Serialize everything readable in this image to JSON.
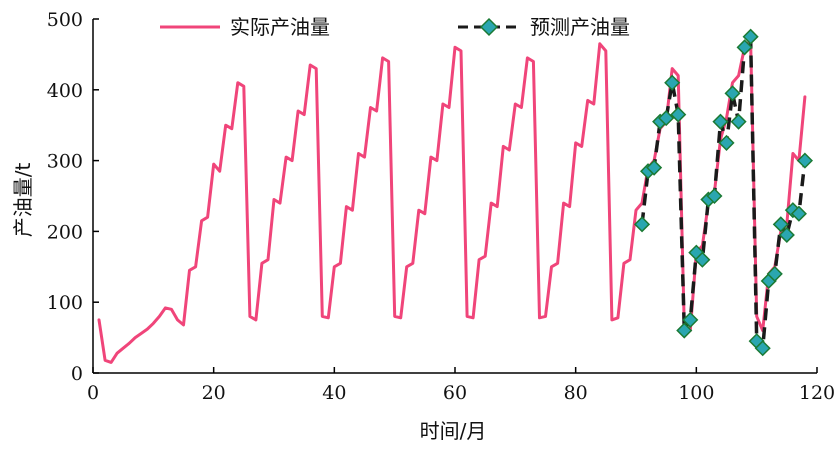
{
  "chart_data": {
    "type": "line",
    "title": "",
    "xlabel": "时间/月",
    "ylabel": "产油量/t",
    "xlim": [
      0,
      120
    ],
    "ylim": [
      0,
      500
    ],
    "xticks": [
      0,
      20,
      40,
      60,
      80,
      100,
      120
    ],
    "yticks": [
      0,
      100,
      200,
      300,
      400,
      500
    ],
    "grid": false,
    "legend_position": "top",
    "series": [
      {
        "name": "实际产油量",
        "color": "#f0457a",
        "style": "solid",
        "x": [
          1,
          2,
          3,
          4,
          5,
          6,
          7,
          8,
          9,
          10,
          11,
          12,
          13,
          14,
          15,
          16,
          17,
          18,
          19,
          20,
          21,
          22,
          23,
          24,
          25,
          26,
          27,
          28,
          29,
          30,
          31,
          32,
          33,
          34,
          35,
          36,
          37,
          38,
          39,
          40,
          41,
          42,
          43,
          44,
          45,
          46,
          47,
          48,
          49,
          50,
          51,
          52,
          53,
          54,
          55,
          56,
          57,
          58,
          59,
          60,
          61,
          62,
          63,
          64,
          65,
          66,
          67,
          68,
          69,
          70,
          71,
          72,
          73,
          74,
          75,
          76,
          77,
          78,
          79,
          80,
          81,
          82,
          83,
          84,
          85,
          86,
          87,
          88,
          89,
          90,
          91,
          92,
          93,
          94,
          95,
          96,
          97,
          98,
          99,
          100,
          101,
          102,
          103,
          104,
          105,
          106,
          107,
          108,
          109,
          110,
          111,
          112,
          113,
          114,
          115,
          116,
          117,
          118
        ],
        "y": [
          75,
          18,
          15,
          28,
          35,
          42,
          50,
          56,
          62,
          70,
          80,
          92,
          90,
          75,
          68,
          145,
          150,
          215,
          220,
          295,
          285,
          350,
          345,
          410,
          405,
          80,
          75,
          155,
          160,
          245,
          240,
          305,
          300,
          370,
          365,
          435,
          430,
          80,
          78,
          150,
          155,
          235,
          230,
          310,
          305,
          375,
          370,
          445,
          440,
          80,
          78,
          150,
          155,
          230,
          225,
          305,
          300,
          380,
          375,
          460,
          455,
          80,
          78,
          160,
          165,
          240,
          235,
          320,
          315,
          380,
          375,
          445,
          440,
          78,
          80,
          150,
          155,
          240,
          235,
          325,
          320,
          385,
          380,
          465,
          455,
          75,
          78,
          155,
          160,
          230,
          240,
          290,
          300,
          345,
          355,
          430,
          420,
          65,
          60,
          170,
          180,
          240,
          255,
          330,
          360,
          410,
          420,
          460,
          470,
          80,
          60,
          140,
          150,
          200,
          210,
          310,
          300,
          390
        ]
      },
      {
        "name": "预测产油量",
        "color": "#1a1a1a",
        "style": "dashed",
        "marker_color": "#2aa6b0",
        "x": [
          91,
          92,
          93,
          94,
          95,
          96,
          97,
          98,
          99,
          100,
          101,
          102,
          103,
          104,
          105,
          106,
          107,
          108,
          109,
          110,
          111,
          112,
          113,
          114,
          115,
          116,
          117,
          118
        ],
        "y": [
          210,
          285,
          290,
          355,
          360,
          410,
          365,
          60,
          75,
          170,
          160,
          245,
          250,
          355,
          325,
          395,
          355,
          460,
          475,
          45,
          35,
          130,
          140,
          210,
          195,
          230,
          225,
          300
        ]
      }
    ]
  }
}
